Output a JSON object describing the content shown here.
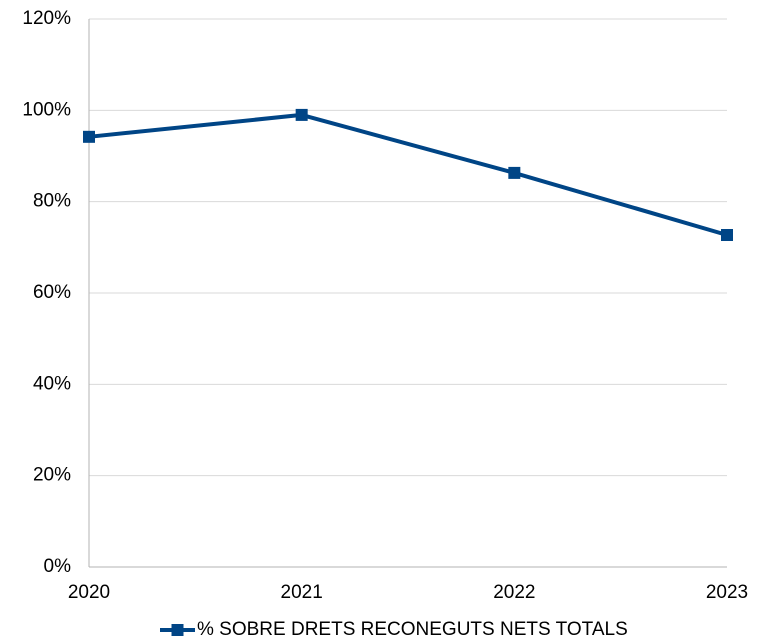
{
  "chart_data": {
    "type": "line",
    "categories": [
      "2020",
      "2021",
      "2022",
      "2023"
    ],
    "series": [
      {
        "name": "% SOBRE DRETS RECONEGUTS NETS TOTALS",
        "color": "#004586",
        "values": [
          94.2,
          99.0,
          86.3,
          72.7
        ]
      }
    ],
    "ylim": [
      0,
      120
    ],
    "yticks": [
      {
        "value": 0,
        "label": "0%"
      },
      {
        "value": 20,
        "label": "20%"
      },
      {
        "value": 40,
        "label": "40%"
      },
      {
        "value": 60,
        "label": "60%"
      },
      {
        "value": 80,
        "label": "80%"
      },
      {
        "value": 100,
        "label": "100%"
      },
      {
        "value": 120,
        "label": "120%"
      }
    ],
    "grid": true,
    "legend": "bottom"
  }
}
